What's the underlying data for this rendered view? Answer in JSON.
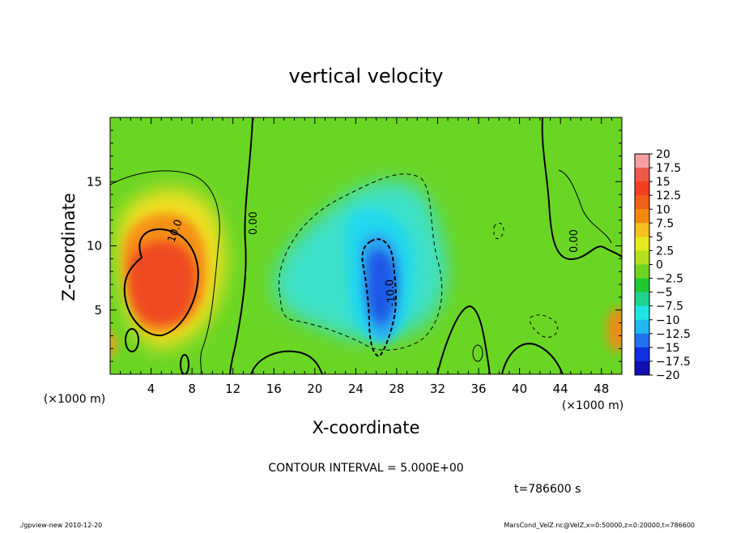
{
  "chart_data": {
    "type": "heatmap",
    "title": "vertical velocity",
    "xlabel": "X-coordinate",
    "ylabel": "Z-coordinate",
    "x_unit": "(×1000 m)",
    "y_unit": "(×1000 m)",
    "xlim": [
      0,
      50
    ],
    "ylim": [
      0,
      20
    ],
    "xticks": [
      4,
      8,
      12,
      16,
      20,
      24,
      28,
      32,
      36,
      40,
      44,
      48
    ],
    "yticks": [
      5,
      10,
      15
    ],
    "colorbar": {
      "levels": [
        20,
        17.5,
        15,
        12.5,
        10,
        7.5,
        5,
        2.5,
        0,
        -2.5,
        -5,
        -7.5,
        -10,
        -12.5,
        -15,
        -17.5,
        -20
      ],
      "labels": [
        "20",
        "17.5",
        "15",
        "12.5",
        "10",
        "7.5",
        "5",
        "2.5",
        "0",
        "−2.5",
        "−5",
        "−7.5",
        "−10",
        "−12.5",
        "−15",
        "−17.5",
        "−20"
      ],
      "colors": [
        "#f5a0a0",
        "#ee5a4a",
        "#f04020",
        "#f06018",
        "#f58a10",
        "#f5c020",
        "#e6e820",
        "#b4e020",
        "#70d420",
        "#20c830",
        "#20d490",
        "#20e4e4",
        "#20b8f0",
        "#2070f0",
        "#1030e0",
        "#1010b0",
        "#7020c0"
      ]
    },
    "features": [
      {
        "kind": "updraft",
        "x": 5,
        "z": 7.5,
        "peak": 17.5
      },
      {
        "kind": "downdraft",
        "x": 26.5,
        "z": 7,
        "peak": -12.5
      },
      {
        "kind": "updraft",
        "x": 50,
        "z": 3,
        "peak": 12.5
      }
    ],
    "contour_labels": [
      "10.0",
      "0.00",
      "-10.0",
      "0.00"
    ],
    "contour_interval_text": "CONTOUR INTERVAL = 5.000E+00",
    "time_text": "t=786600 s"
  },
  "footer": {
    "left": "./gpview-new  2010-12-20",
    "right": "MarsCond_VelZ.nc@VelZ,x=0:50000,z=0:20000,t=786600"
  }
}
